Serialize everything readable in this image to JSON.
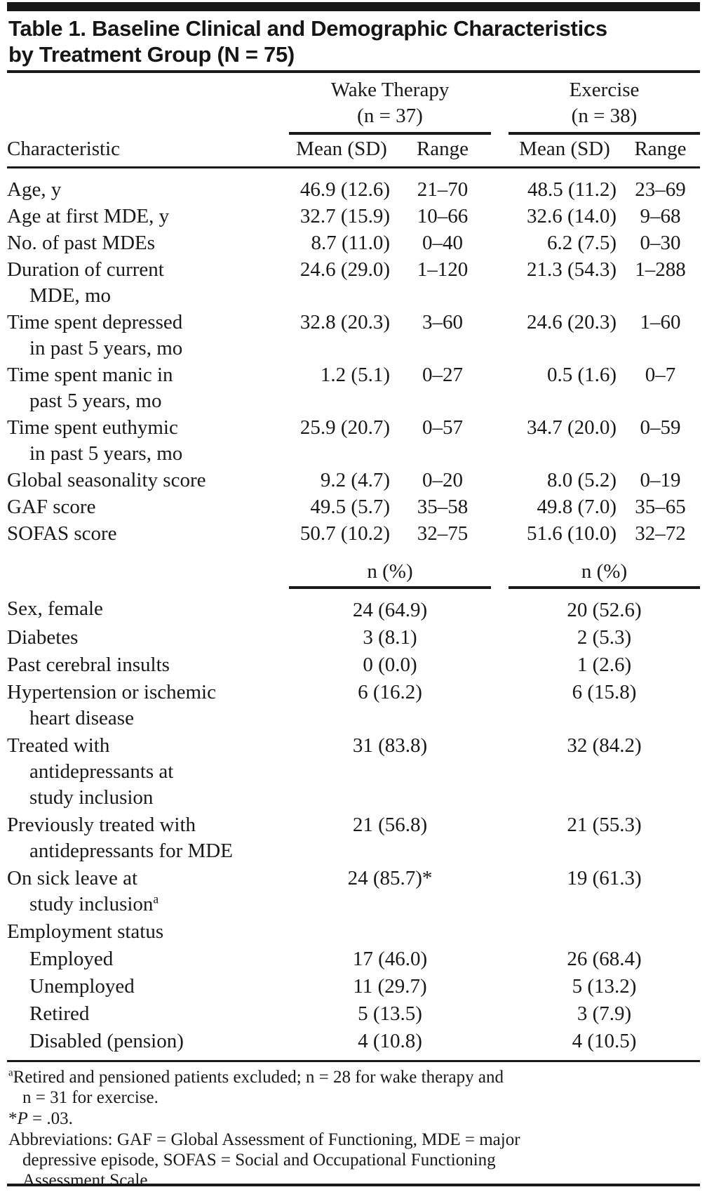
{
  "title": "Table 1. Baseline Clinical and Demographic Characteristics\nby Treatment Group (N = 75)",
  "header": {
    "characteristic": "Characteristic",
    "groups": [
      {
        "name": "Wake Therapy",
        "n": "(n = 37)",
        "mean_sd": "Mean (SD)",
        "range": "Range"
      },
      {
        "name": "Exercise",
        "n": "(n = 38)",
        "mean_sd": "Mean (SD)",
        "range": "Range"
      }
    ],
    "pct_label": "n (%)"
  },
  "continuous_rows": [
    {
      "label": "Age, y",
      "wt_mean": "46.9 (12.6)",
      "wt_range": "21–70",
      "ex_mean": "48.5 (11.2)",
      "ex_range": "23–69"
    },
    {
      "label": "Age at first MDE, y",
      "wt_mean": "32.7 (15.9)",
      "wt_range": "10–66",
      "ex_mean": "32.6 (14.0)",
      "ex_range": "9–68"
    },
    {
      "label": "No. of past MDEs",
      "wt_mean": "8.7 (11.0)",
      "wt_range": "0–40",
      "ex_mean": "6.2 (7.5)",
      "ex_range": "0–30"
    },
    {
      "label": "Duration of current\nMDE, mo",
      "wt_mean": "24.6 (29.0)",
      "wt_range": "1–120",
      "ex_mean": "21.3 (54.3)",
      "ex_range": "1–288"
    },
    {
      "label": "Time spent depressed\nin past 5 years, mo",
      "wt_mean": "32.8 (20.3)",
      "wt_range": "3–60",
      "ex_mean": "24.6 (20.3)",
      "ex_range": "1–60"
    },
    {
      "label": "Time spent manic in\npast 5 years, mo",
      "wt_mean": "1.2 (5.1)",
      "wt_range": "0–27",
      "ex_mean": "0.5 (1.6)",
      "ex_range": "0–7"
    },
    {
      "label": "Time spent euthymic\nin past 5 years, mo",
      "wt_mean": "25.9 (20.7)",
      "wt_range": "0–57",
      "ex_mean": "34.7 (20.0)",
      "ex_range": "0–59"
    },
    {
      "label": "Global seasonality score",
      "wt_mean": "9.2 (4.7)",
      "wt_range": "0–20",
      "ex_mean": "8.0 (5.2)",
      "ex_range": "0–19"
    },
    {
      "label": "GAF score",
      "wt_mean": "49.5 (5.7)",
      "wt_range": "35–58",
      "ex_mean": "49.8 (7.0)",
      "ex_range": "35–65"
    },
    {
      "label": "SOFAS score",
      "wt_mean": "50.7 (10.2)",
      "wt_range": "32–75",
      "ex_mean": "51.6 (10.0)",
      "ex_range": "32–72"
    }
  ],
  "categorical_rows": [
    {
      "label": "Sex, female",
      "wt": "24 (64.9)",
      "ex": "20 (52.6)"
    },
    {
      "label": "Diabetes",
      "wt": "3 (8.1)",
      "ex": "2 (5.3)"
    },
    {
      "label": "Past cerebral insults",
      "wt": "0 (0.0)",
      "ex": "1 (2.6)"
    },
    {
      "label": "Hypertension or ischemic\nheart disease",
      "wt": "6 (16.2)",
      "ex": "6 (15.8)"
    },
    {
      "label": "Treated with\nantidepressants at\nstudy inclusion",
      "wt": "31 (83.8)",
      "ex": "32 (84.2)"
    },
    {
      "label": "Previously treated with\nantidepressants for MDE",
      "wt": "21 (56.8)",
      "ex": "21 (55.3)"
    },
    {
      "label": "On sick leave at\nstudy inclusion",
      "sup": "a",
      "wt": "24 (85.7)*",
      "ex": "19 (61.3)"
    },
    {
      "label": "Employment status",
      "wt": "",
      "ex": ""
    },
    {
      "label": "Employed",
      "indent": true,
      "wt": "17 (46.0)",
      "ex": "26 (68.4)"
    },
    {
      "label": "Unemployed",
      "indent": true,
      "wt": "11 (29.7)",
      "ex": "5 (13.2)"
    },
    {
      "label": "Retired",
      "indent": true,
      "wt": "5 (13.5)",
      "ex": "3 (7.9)"
    },
    {
      "label": "Disabled (pension)",
      "indent": true,
      "wt": "4 (10.8)",
      "ex": "4 (10.5)"
    }
  ],
  "footnotes": [
    {
      "segments": [
        {
          "text": "a",
          "style": "sup"
        },
        {
          "text": "Retired and pensioned patients excluded; n = 28 for wake therapy and\nn = 31 for exercise.",
          "style": "normal"
        }
      ]
    },
    {
      "segments": [
        {
          "text": "*",
          "style": "normal"
        },
        {
          "text": "P",
          "style": "italic"
        },
        {
          "text": " = .03.",
          "style": "normal"
        }
      ]
    },
    {
      "segments": [
        {
          "text": "Abbreviations: GAF = Global Assessment of Functioning, MDE = major\ndepressive episode, SOFAS = Social and Occupational Functioning\nAssessment Scale.",
          "style": "normal"
        }
      ]
    }
  ]
}
